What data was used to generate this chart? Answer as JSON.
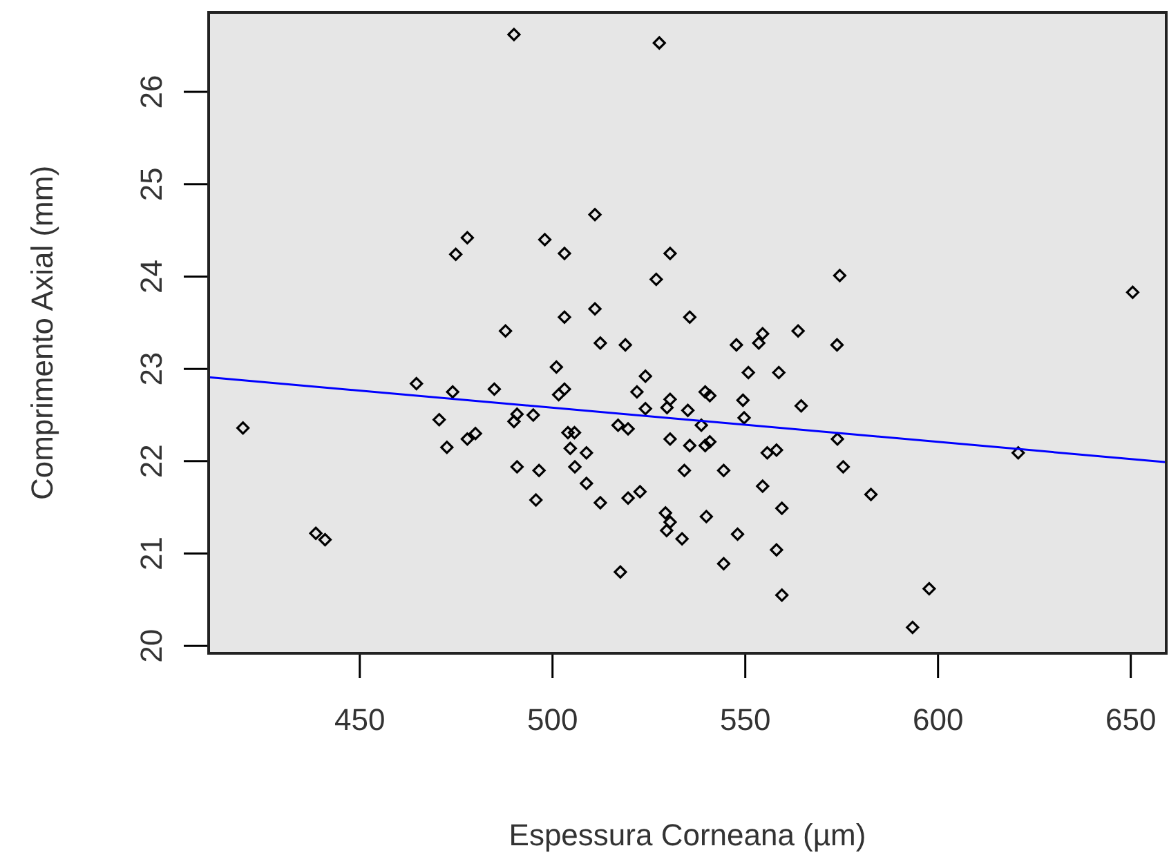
{
  "chart_data": {
    "type": "scatter",
    "xlabel": "Espessura Corneana (µm)",
    "ylabel": "Comprimento Axial (mm)",
    "xlim": [
      410.8,
      659.2
    ],
    "ylim": [
      19.92,
      26.86
    ],
    "xticks": [
      450,
      500,
      550,
      600,
      650
    ],
    "yticks": [
      20,
      21,
      22,
      23,
      24,
      25,
      26
    ],
    "grid": false,
    "series": [
      {
        "marker": "diamond",
        "color": "#000000",
        "x": [
          490.0,
          419.7,
          474.9,
          477.9,
          498.0,
          503.1,
          511.0,
          503.1,
          487.8,
          511.0,
          512.4,
          501.0,
          464.7,
          474.1,
          484.9,
          501.6,
          503.1,
          470.6,
          490.0,
          490.8,
          495.0,
          504.0,
          505.7,
          472.6,
          477.9,
          480.0,
          490.8,
          496.5,
          495.7,
          438.6,
          441.0,
          504.6,
          508.8,
          505.8,
          508.8,
          517.0,
          519.6,
          512.4,
          519.6,
          522.7,
          530.5,
          535.6,
          539.6,
          540.8,
          538.6,
          534.2,
          544.4,
          529.3,
          530.5,
          529.6,
          533.6,
          539.9,
          517.6,
          544.4,
          548.0,
          554.5,
          555.7,
          558.1,
          559.5,
          558.1,
          559.5,
          573.9,
          575.4,
          582.6,
          593.4,
          597.7,
          620.8,
          549.7,
          527.7,
          530.5,
          526.9,
          574.5,
          650.5,
          535.6,
          518.9,
          547.7,
          553.5,
          554.5,
          563.7,
          573.8,
          524.1,
          521.9,
          530.5,
          529.7,
          524.1,
          535.1,
          539.6,
          540.8,
          550.8,
          558.7,
          549.4,
          564.5
        ],
        "values": [
          26.62,
          22.36,
          24.24,
          24.42,
          24.4,
          24.25,
          24.67,
          23.56,
          23.41,
          23.65,
          23.28,
          23.02,
          22.84,
          22.75,
          22.78,
          22.72,
          22.78,
          22.45,
          22.43,
          22.51,
          22.5,
          22.31,
          22.31,
          22.15,
          22.24,
          22.3,
          21.94,
          21.9,
          21.58,
          21.22,
          21.15,
          22.14,
          22.09,
          21.94,
          21.76,
          22.39,
          22.35,
          21.55,
          21.6,
          21.67,
          22.24,
          22.17,
          22.17,
          22.21,
          22.39,
          21.9,
          21.9,
          21.44,
          21.34,
          21.25,
          21.16,
          21.4,
          20.8,
          20.89,
          21.21,
          21.73,
          22.09,
          22.12,
          21.49,
          21.04,
          20.55,
          22.24,
          21.94,
          21.64,
          20.2,
          20.62,
          22.09,
          22.47,
          26.53,
          24.25,
          23.97,
          24.01,
          23.83,
          23.56,
          23.26,
          23.26,
          23.28,
          23.38,
          23.41,
          23.26,
          22.92,
          22.75,
          22.67,
          22.58,
          22.57,
          22.55,
          22.75,
          22.71,
          22.96,
          22.96,
          22.66,
          22.6
        ]
      },
      {
        "type": "line",
        "color": "#0000ff",
        "x": [
          410.8,
          659.2
        ],
        "values": [
          22.91,
          21.99
        ]
      }
    ]
  }
}
